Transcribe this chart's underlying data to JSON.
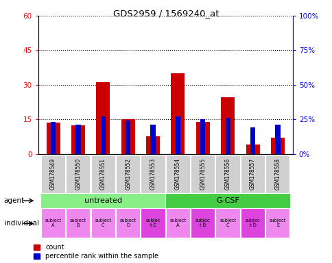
{
  "title": "GDS2959 / 1569240_at",
  "samples": [
    "GSM178549",
    "GSM178550",
    "GSM178551",
    "GSM178552",
    "GSM178553",
    "GSM178554",
    "GSM178555",
    "GSM178556",
    "GSM178557",
    "GSM178558"
  ],
  "count_values": [
    13.5,
    12.5,
    31.0,
    15.0,
    7.5,
    35.0,
    14.0,
    24.5,
    4.0,
    7.0
  ],
  "percentile_values": [
    23,
    21,
    27,
    24,
    21,
    27,
    25,
    26,
    19,
    21
  ],
  "ylim_left": [
    0,
    60
  ],
  "ylim_right": [
    0,
    100
  ],
  "yticks_left": [
    0,
    15,
    30,
    45,
    60
  ],
  "yticks_right": [
    0,
    25,
    50,
    75,
    100
  ],
  "ytick_labels_left": [
    "0",
    "15",
    "30",
    "45",
    "60"
  ],
  "ytick_labels_right": [
    "0%",
    "25%",
    "50%",
    "75%",
    "100%"
  ],
  "bar_color": "#cc0000",
  "percentile_color": "#0000cc",
  "agent_groups": [
    {
      "label": "untreated",
      "start": 0,
      "end": 5,
      "color": "#88ee88"
    },
    {
      "label": "G-CSF",
      "start": 5,
      "end": 10,
      "color": "#44cc44"
    }
  ],
  "individual_labels": [
    "subject\nA",
    "subject\nB",
    "subject\nC",
    "subject\nD",
    "subjec\nt E",
    "subject\nA",
    "subjec\nt B",
    "subject\nC",
    "subjec\nt D",
    "subject\nE"
  ],
  "individual_highlight": [
    4,
    6,
    8
  ],
  "individual_base_color": "#ee88ee",
  "individual_highlight_color": "#dd44dd",
  "bar_width": 0.55,
  "perc_bar_width": 0.2
}
